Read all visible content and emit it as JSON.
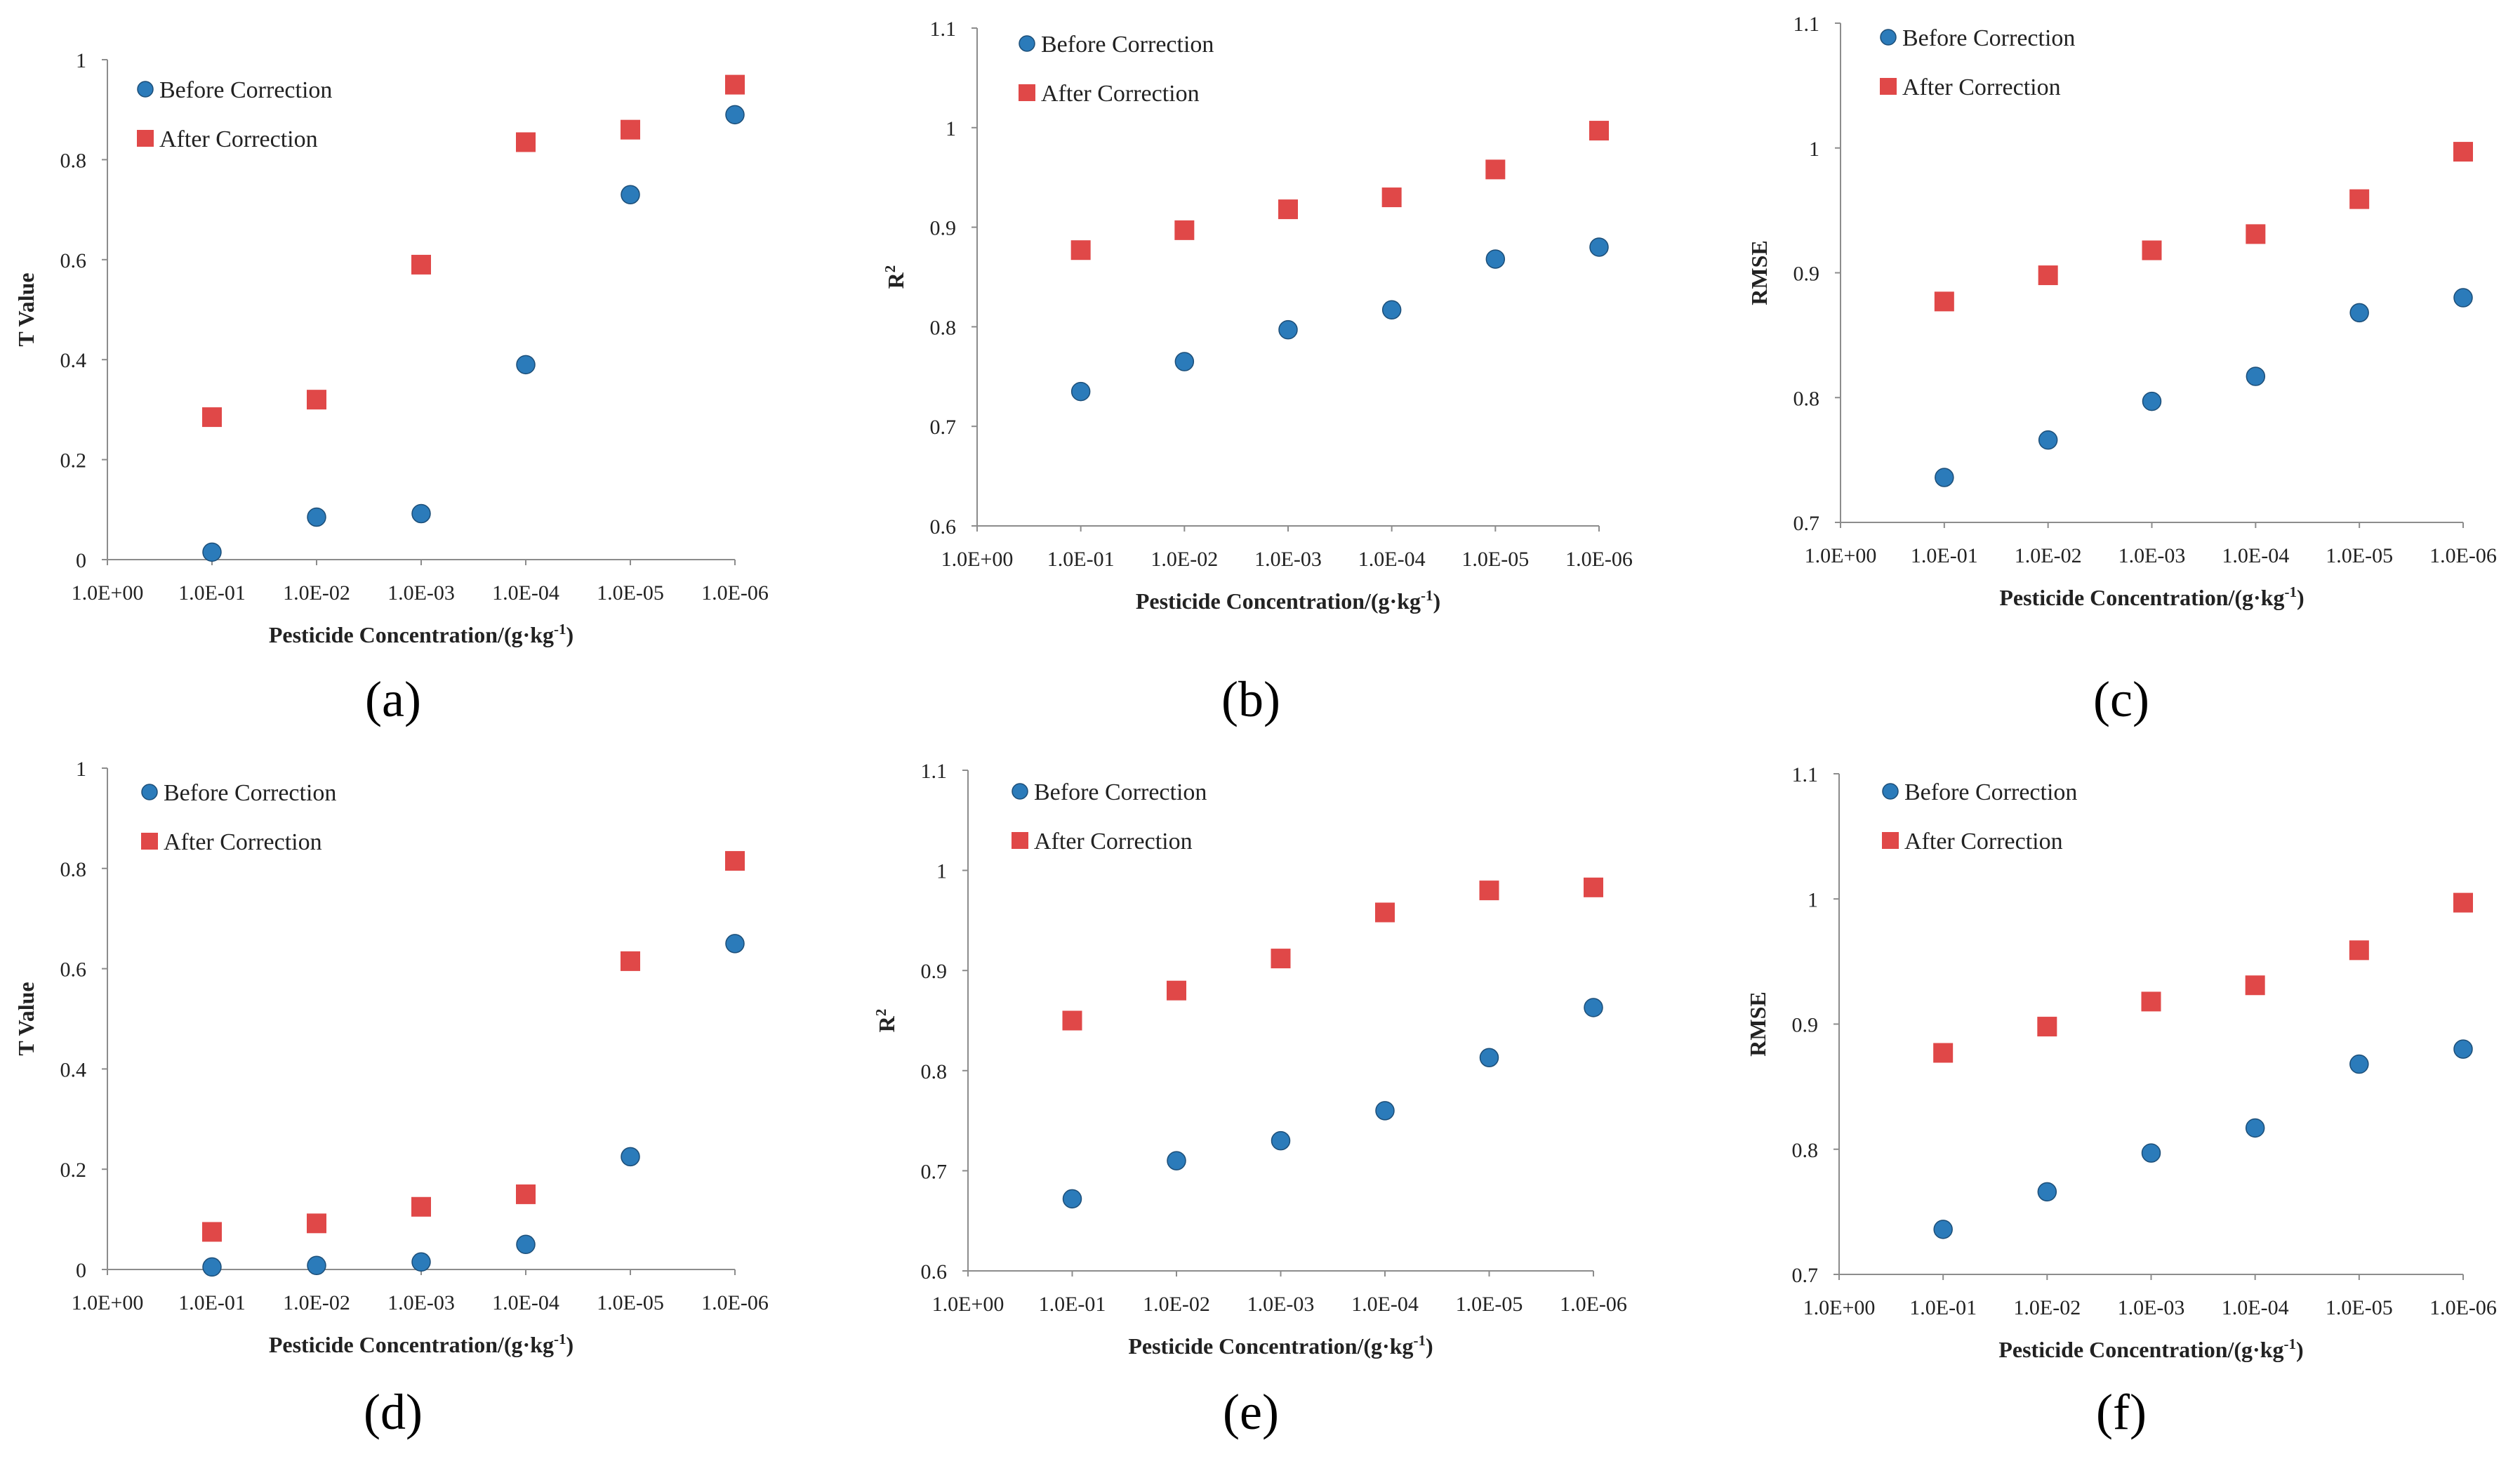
{
  "colors": {
    "before": "#2B7BBA",
    "after": "#E04848",
    "axis": "#8C8C8C"
  },
  "chart_data": [
    {
      "type": "scatter",
      "panel": "(a)",
      "categories": [
        "1.0E+00",
        "1.0E-01",
        "1.0E-02",
        "1.0E-03",
        "1.0E-04",
        "1.0E-05",
        "1.0E-06"
      ],
      "ylabel": "T Value",
      "xlabel": "Pesticide Concentration/(g·kg",
      "xlabel_sup": "-1",
      "xlabel_end": ")",
      "ylim": [
        0,
        1
      ],
      "yticks": [
        "0",
        "0.2",
        "0.4",
        "0.6",
        "0.8",
        "1"
      ],
      "series": [
        {
          "name": "Before Correction",
          "values": [
            0.015,
            0.085,
            0.092,
            0.39,
            0.73,
            0.89
          ]
        },
        {
          "name": "After Correction",
          "values": [
            0.285,
            0.32,
            0.59,
            0.835,
            0.86,
            0.95
          ]
        }
      ]
    },
    {
      "type": "scatter",
      "panel": "(b)",
      "categories": [
        "1.0E+00",
        "1.0E-01",
        "1.0E-02",
        "1.0E-03",
        "1.0E-04",
        "1.0E-05",
        "1.0E-06"
      ],
      "ylabel": "R",
      "ylabel_sup": "2",
      "xlabel": "Pesticide Concentration/(g·kg",
      "xlabel_sup": "-1",
      "xlabel_end": ")",
      "ylim": [
        0.6,
        1.1
      ],
      "yticks": [
        "0.6",
        "0.7",
        "0.8",
        "0.9",
        "1",
        "1.1"
      ],
      "series": [
        {
          "name": "Before Correction",
          "values": [
            0.735,
            0.765,
            0.797,
            0.817,
            0.868,
            0.88
          ]
        },
        {
          "name": "After Correction",
          "values": [
            0.877,
            0.897,
            0.918,
            0.93,
            0.958,
            0.997
          ]
        }
      ]
    },
    {
      "type": "scatter",
      "panel": "(c)",
      "categories": [
        "1.0E+00",
        "1.0E-01",
        "1.0E-02",
        "1.0E-03",
        "1.0E-04",
        "1.0E-05",
        "1.0E-06"
      ],
      "ylabel": "RMSE",
      "xlabel": "Pesticide Concentration/(g·kg",
      "xlabel_sup": "-1",
      "xlabel_end": ")",
      "ylim": [
        0.7,
        1.1
      ],
      "yticks": [
        "0.7",
        "0.8",
        "0.9",
        "1",
        "1.1"
      ],
      "series": [
        {
          "name": "Before Correction",
          "values": [
            0.736,
            0.766,
            0.797,
            0.817,
            0.868,
            0.88
          ]
        },
        {
          "name": "After Correction",
          "values": [
            0.877,
            0.898,
            0.918,
            0.931,
            0.959,
            0.997
          ]
        }
      ]
    },
    {
      "type": "scatter",
      "panel": "(d)",
      "categories": [
        "1.0E+00",
        "1.0E-01",
        "1.0E-02",
        "1.0E-03",
        "1.0E-04",
        "1.0E-05",
        "1.0E-06"
      ],
      "ylabel": "T Value",
      "xlabel": "Pesticide Concentration/(g·kg",
      "xlabel_sup": "-1",
      "xlabel_end": ")",
      "ylim": [
        0,
        1
      ],
      "yticks": [
        "0",
        "0.2",
        "0.4",
        "0.6",
        "0.8",
        "1"
      ],
      "series": [
        {
          "name": "Before Correction",
          "values": [
            0.005,
            0.008,
            0.015,
            0.05,
            0.225,
            0.65
          ]
        },
        {
          "name": "After Correction",
          "values": [
            0.075,
            0.092,
            0.125,
            0.15,
            0.615,
            0.815
          ]
        }
      ]
    },
    {
      "type": "scatter",
      "panel": "(e)",
      "categories": [
        "1.0E+00",
        "1.0E-01",
        "1.0E-02",
        "1.0E-03",
        "1.0E-04",
        "1.0E-05",
        "1.0E-06"
      ],
      "ylabel": "R",
      "ylabel_sup": "2",
      "xlabel": "Pesticide Concentration/(g·kg",
      "xlabel_sup": "-1",
      "xlabel_end": ")",
      "ylim": [
        0.6,
        1.1
      ],
      "yticks": [
        "0.6",
        "0.7",
        "0.8",
        "0.9",
        "1",
        "1.1"
      ],
      "series": [
        {
          "name": "Before Correction",
          "values": [
            0.672,
            0.71,
            0.73,
            0.76,
            0.813,
            0.863
          ]
        },
        {
          "name": "After Correction",
          "values": [
            0.85,
            0.88,
            0.912,
            0.958,
            0.98,
            0.983
          ]
        }
      ]
    },
    {
      "type": "scatter",
      "panel": "(f)",
      "categories": [
        "1.0E+00",
        "1.0E-01",
        "1.0E-02",
        "1.0E-03",
        "1.0E-04",
        "1.0E-05",
        "1.0E-06"
      ],
      "ylabel": "RMSE",
      "xlabel": "Pesticide Concentration/(g·kg",
      "xlabel_sup": "-1",
      "xlabel_end": ")",
      "ylim": [
        0.7,
        1.1
      ],
      "yticks": [
        "0.7",
        "0.8",
        "0.9",
        "1",
        "1.1"
      ],
      "series": [
        {
          "name": "Before Correction",
          "values": [
            0.736,
            0.766,
            0.797,
            0.817,
            0.868,
            0.88
          ]
        },
        {
          "name": "After Correction",
          "values": [
            0.877,
            0.898,
            0.918,
            0.931,
            0.959,
            0.997
          ]
        }
      ]
    }
  ]
}
